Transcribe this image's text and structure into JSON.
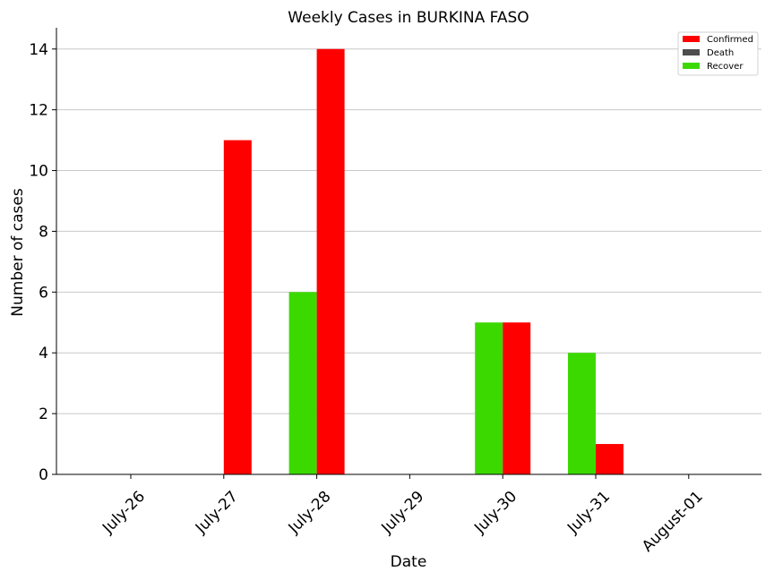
{
  "chart_data": {
    "type": "bar",
    "title": "Weekly Cases in BURKINA FASO",
    "xlabel": "Date",
    "ylabel": "Number of cases",
    "categories": [
      "July-26",
      "July-27",
      "July-28",
      "July-29",
      "July-30",
      "July-31",
      "August-01"
    ],
    "ylim": [
      0,
      14.7
    ],
    "yticks": [
      0,
      2,
      4,
      6,
      8,
      10,
      12,
      14
    ],
    "grid": "horizontal",
    "legend_position": "top-right",
    "series": [
      {
        "name": "Confirmed",
        "color": "#ff0000",
        "values": [
          0,
          11,
          14,
          0,
          5,
          1,
          0
        ]
      },
      {
        "name": "Death",
        "color": "#4d4d4d",
        "values": [
          0,
          0,
          0,
          0,
          0,
          0,
          0
        ]
      },
      {
        "name": "Recover",
        "color": "#3cd900",
        "values": [
          0,
          0,
          6,
          0,
          5,
          4,
          0
        ]
      }
    ]
  }
}
